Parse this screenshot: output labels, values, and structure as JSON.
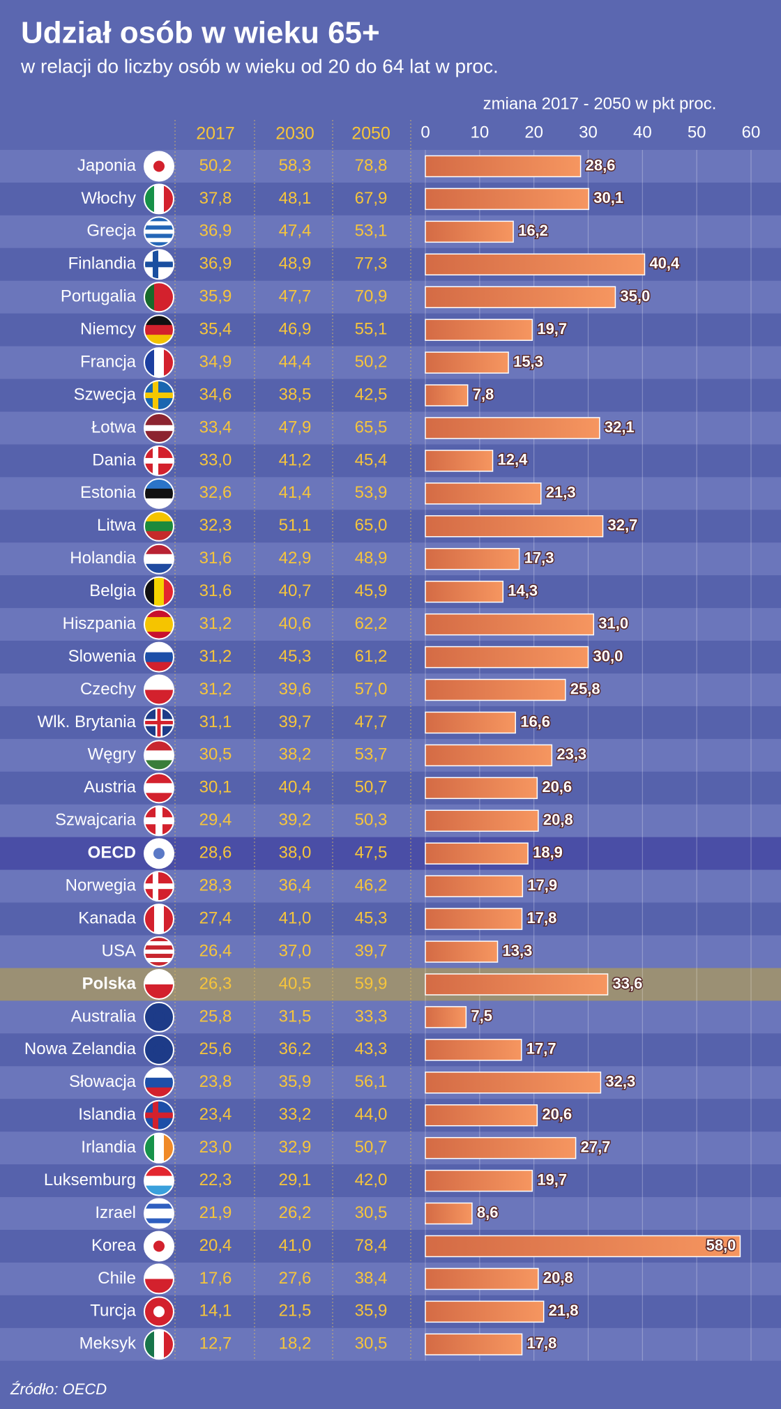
{
  "chart_data": {
    "type": "bar",
    "title": "Udział osób w wieku 65+",
    "subtitle": "w relacji do liczby osób w wieku od 20 do 64 lat w proc.",
    "x_label": "zmiana 2017 - 2050 w pkt proc.",
    "source": "Źródło: OECD",
    "categories": [
      "Japonia",
      "Włochy",
      "Grecja",
      "Finlandia",
      "Portugalia",
      "Niemcy",
      "Francja",
      "Szwecja",
      "Łotwa",
      "Dania",
      "Estonia",
      "Litwa",
      "Holandia",
      "Belgia",
      "Hiszpania",
      "Slowenia",
      "Czechy",
      "Wlk. Brytania",
      "Węgry",
      "Austria",
      "Szwajcaria",
      "OECD",
      "Norwegia",
      "Kanada",
      "USA",
      "Polska",
      "Australia",
      "Nowa Zelandia",
      "Słowacja",
      "Islandia",
      "Irlandia",
      "Luksemburg",
      "Izrael",
      "Korea",
      "Chile",
      "Turcja",
      "Meksyk"
    ],
    "columns": [
      {
        "name": "2017",
        "values": [
          "50,2",
          "37,8",
          "36,9",
          "36,9",
          "35,9",
          "35,4",
          "34,9",
          "34,6",
          "33,4",
          "33,0",
          "32,6",
          "32,3",
          "31,6",
          "31,6",
          "31,2",
          "31,2",
          "31,2",
          "31,1",
          "30,5",
          "30,1",
          "29,4",
          "28,6",
          "28,3",
          "27,4",
          "26,4",
          "26,3",
          "25,8",
          "25,6",
          "23,8",
          "23,4",
          "23,0",
          "22,3",
          "21,9",
          "20,4",
          "17,6",
          "14,1",
          "12,7"
        ]
      },
      {
        "name": "2030",
        "values": [
          "58,3",
          "48,1",
          "47,4",
          "48,9",
          "47,7",
          "46,9",
          "44,4",
          "38,5",
          "47,9",
          "41,2",
          "41,4",
          "51,1",
          "42,9",
          "40,7",
          "40,6",
          "45,3",
          "39,6",
          "39,7",
          "38,2",
          "40,4",
          "39,2",
          "38,0",
          "36,4",
          "41,0",
          "37,0",
          "40,5",
          "31,5",
          "36,2",
          "35,9",
          "33,2",
          "32,9",
          "29,1",
          "26,2",
          "41,0",
          "27,6",
          "21,5",
          "18,2"
        ]
      },
      {
        "name": "2050",
        "values": [
          "78,8",
          "67,9",
          "53,1",
          "77,3",
          "70,9",
          "55,1",
          "50,2",
          "42,5",
          "65,5",
          "45,4",
          "53,9",
          "65,0",
          "48,9",
          "45,9",
          "62,2",
          "61,2",
          "57,0",
          "47,7",
          "53,7",
          "50,7",
          "50,3",
          "47,5",
          "46,2",
          "45,3",
          "39,7",
          "59,9",
          "33,3",
          "43,3",
          "56,1",
          "44,0",
          "50,7",
          "42,0",
          "30,5",
          "78,4",
          "38,4",
          "35,9",
          "30,5"
        ]
      }
    ],
    "values": [
      28.6,
      30.1,
      16.2,
      40.4,
      35.0,
      19.7,
      15.3,
      7.8,
      32.1,
      12.4,
      21.3,
      32.7,
      17.3,
      14.3,
      31.0,
      30.0,
      25.8,
      16.6,
      23.3,
      20.6,
      20.8,
      18.9,
      17.9,
      17.8,
      13.3,
      33.6,
      7.5,
      17.7,
      32.3,
      20.6,
      27.7,
      19.7,
      8.6,
      58.0,
      20.8,
      21.8,
      17.8
    ],
    "value_labels": [
      "28,6",
      "30,1",
      "16,2",
      "40,4",
      "35,0",
      "19,7",
      "15,3",
      "7,8",
      "32,1",
      "12,4",
      "21,3",
      "32,7",
      "17,3",
      "14,3",
      "31,0",
      "30,0",
      "25,8",
      "16,6",
      "23,3",
      "20,6",
      "20,8",
      "18,9",
      "17,9",
      "17,8",
      "13,3",
      "33,6",
      "7,5",
      "17,7",
      "32,3",
      "20,6",
      "27,7",
      "19,7",
      "8,6",
      "58,0",
      "20,8",
      "21,8",
      "17,8"
    ],
    "color": "#f08a58",
    "xlim": [
      0,
      60
    ],
    "xticks": [
      0,
      10,
      20,
      30,
      40,
      50,
      60
    ],
    "grid": true,
    "emphasis": [
      {
        "row": 21,
        "color": "#4a4ea6"
      },
      {
        "row": 25,
        "color": "#9b9074"
      }
    ]
  }
}
